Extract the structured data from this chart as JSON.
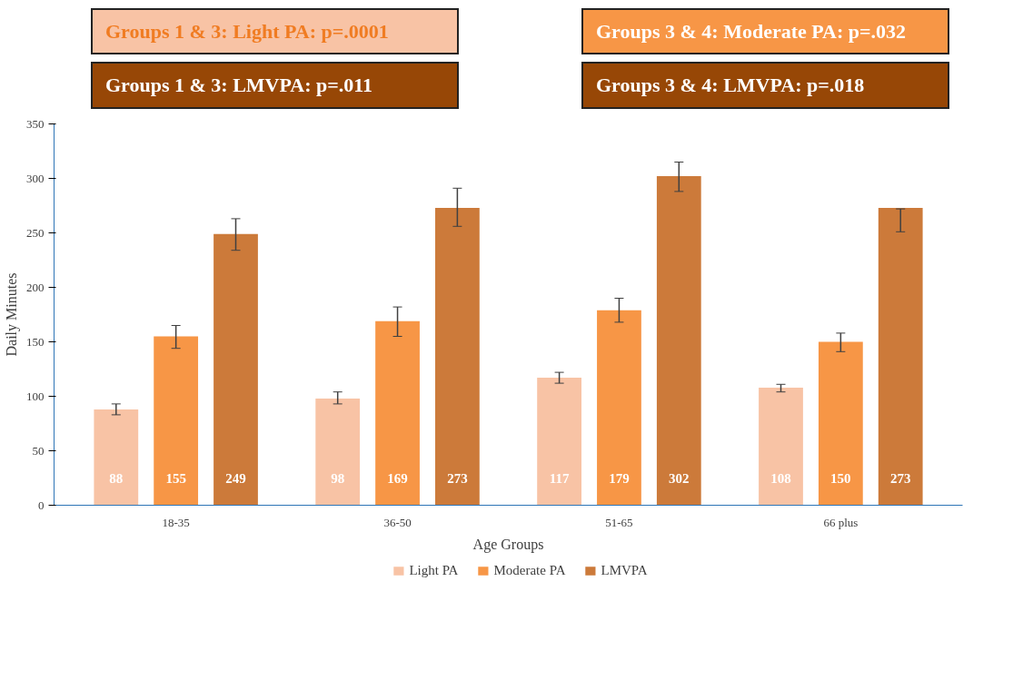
{
  "chart_data": {
    "type": "bar",
    "xlabel": "Age Groups",
    "ylabel": "Daily Minutes",
    "categories": [
      "18-35",
      "36-50",
      "51-65",
      "66 plus"
    ],
    "series": [
      {
        "name": "Light PA",
        "color": "#f8c3a5",
        "values": [
          88,
          98,
          117,
          108
        ],
        "value_labels": [
          "88",
          "98",
          "117",
          "108"
        ],
        "errors": [
          [
            83,
            93
          ],
          [
            93,
            104
          ],
          [
            112,
            122
          ],
          [
            104,
            111
          ]
        ]
      },
      {
        "name": "Moderate PA",
        "color": "#f79646",
        "values": [
          155,
          169,
          179,
          150
        ],
        "value_labels": [
          "155",
          "169",
          "179",
          "150"
        ],
        "errors": [
          [
            144,
            165
          ],
          [
            155,
            182
          ],
          [
            168,
            190
          ],
          [
            141,
            158
          ]
        ]
      },
      {
        "name": "LMVPA",
        "color": "#cc7a3a",
        "values": [
          249,
          273,
          302,
          273
        ],
        "value_labels": [
          "249",
          "273",
          "302",
          "273"
        ],
        "errors": [
          [
            234,
            263
          ],
          [
            256,
            291
          ],
          [
            288,
            315
          ],
          [
            251,
            272
          ]
        ]
      }
    ],
    "annotations": [
      "Groups 1 & 3: Light PA: p=.0001",
      "Groups 3 & 4: Moderate PA: p=.032",
      "Groups 1 & 3: LMVPA: p=.011",
      "Groups 3 & 4: LMVPA: p=.018"
    ],
    "ylim": [
      0,
      350
    ],
    "yticks": [
      0,
      50,
      100,
      150,
      200,
      250,
      300,
      350
    ],
    "grid": false,
    "legend": "bottom"
  }
}
